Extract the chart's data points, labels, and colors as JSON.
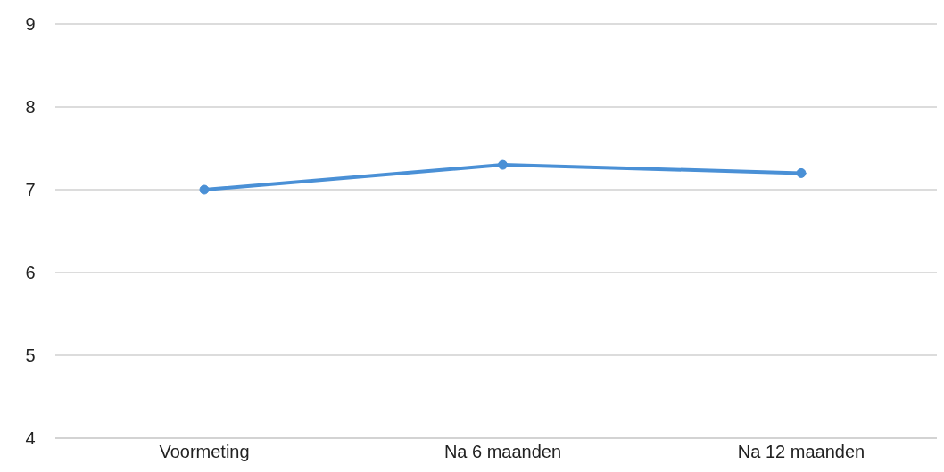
{
  "chart_data": {
    "type": "line",
    "categories": [
      "Voormeting",
      "Na 6 maanden",
      "Na 12 maanden"
    ],
    "series": [
      {
        "color": "#4a90d6",
        "values": [
          7.0,
          7.3,
          7.2
        ]
      }
    ],
    "ylim": [
      4,
      9
    ],
    "yticks": [
      4,
      5,
      6,
      7,
      8,
      9
    ],
    "grid": "y",
    "marker": "circle",
    "legend": false
  }
}
